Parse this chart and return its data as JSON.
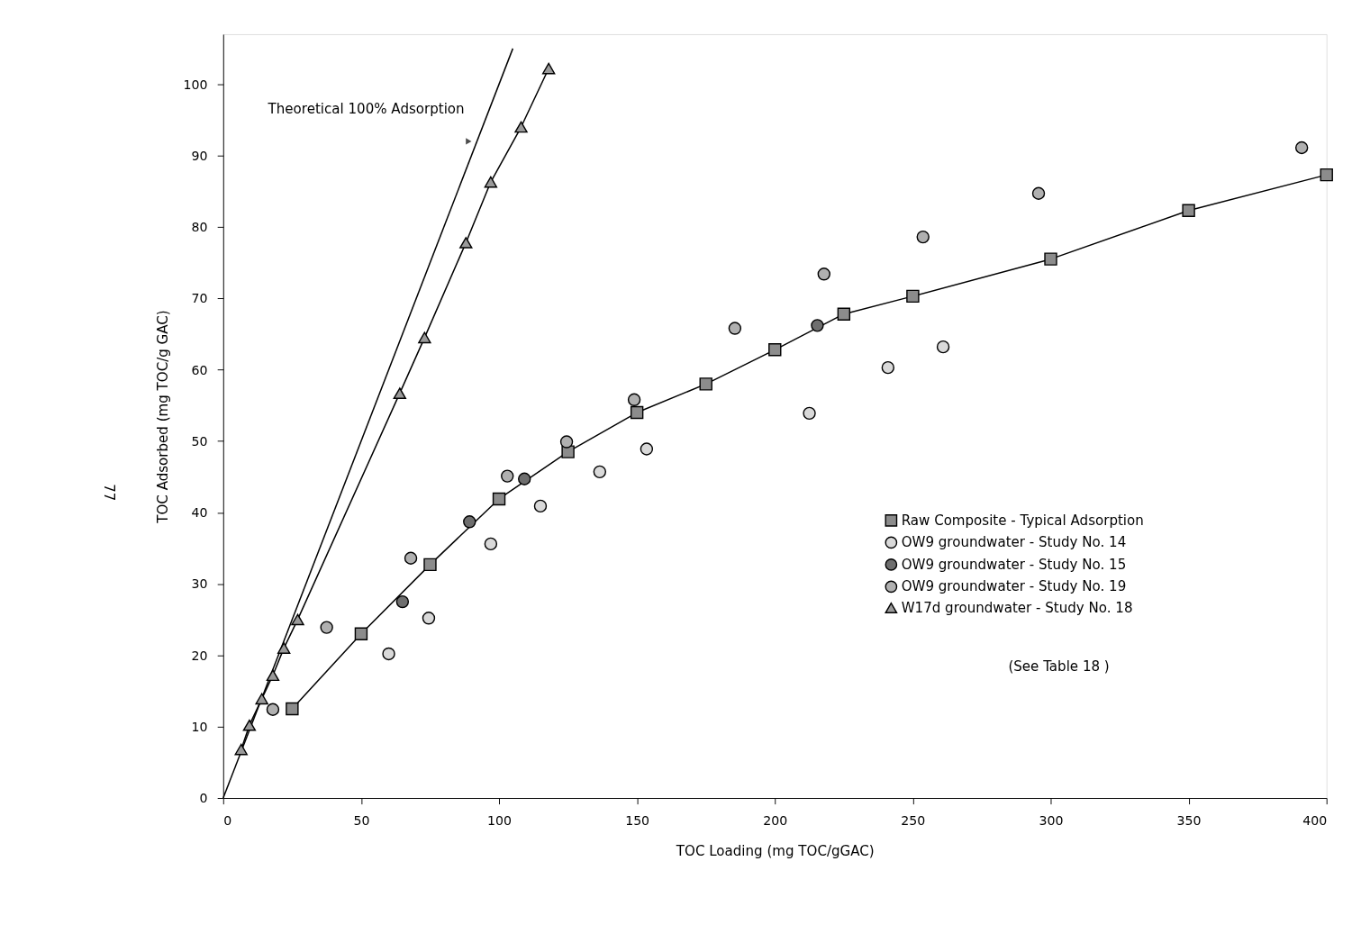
{
  "chart_data": {
    "type": "scatter",
    "xlabel": "TOC Loading (mg TOC/gGAC)",
    "ylabel": "TOC Adsorbed (mg TOC/g GAC)",
    "xlim": [
      0,
      400
    ],
    "ylim": [
      0,
      107
    ],
    "xticks": [
      0,
      50,
      100,
      150,
      200,
      250,
      300,
      350,
      400
    ],
    "yticks": [
      0,
      10,
      20,
      30,
      40,
      50,
      60,
      70,
      80,
      90,
      100
    ],
    "grid": false,
    "legend": "bottom right",
    "series": [
      {
        "type": "line",
        "marker": "none",
        "color": "#000000",
        "x": [
          0,
          105
        ],
        "values": [
          0,
          105
        ]
      },
      {
        "name": "Raw Composite - Typical Adsorption",
        "type": "line",
        "marker": "square",
        "color": "#8c8c8c",
        "x": [
          25,
          50,
          75,
          100,
          125,
          150,
          175,
          200,
          225,
          250,
          300,
          350,
          400
        ],
        "values": [
          12.5,
          23,
          32.7,
          41.9,
          48.5,
          54,
          58,
          62.8,
          67.8,
          70.3,
          75.5,
          82.3,
          87.3
        ]
      },
      {
        "name": "OW9 groundwater - Study No. 14",
        "marker": "circle",
        "color": "#d9d9d9",
        "x": [
          60,
          74.5,
          97,
          115,
          136.5,
          153.5,
          212.5,
          241,
          261
        ],
        "values": [
          20.2,
          25.2,
          35.6,
          40.9,
          45.7,
          48.9,
          53.9,
          60.3,
          63.2
        ]
      },
      {
        "name": "OW9 groundwater - Study No. 15",
        "marker": "circle",
        "color": "#6e6e6e",
        "x": [
          65,
          89.3,
          109.2,
          215.4
        ],
        "values": [
          27.5,
          38.7,
          44.7,
          66.2
        ]
      },
      {
        "name": "OW9 groundwater - Study No. 19",
        "marker": "circle",
        "color": "#b0b0b0",
        "x": [
          18,
          37.5,
          68,
          103,
          124.5,
          149,
          185.5,
          217.8,
          253.7,
          295.6,
          391
        ],
        "values": [
          12.4,
          23.9,
          33.6,
          45.1,
          49.9,
          55.8,
          65.8,
          73.4,
          78.6,
          84.7,
          91.1
        ]
      },
      {
        "name": "W17d groundwater - Study No. 18",
        "type": "line",
        "marker": "triangle",
        "color": "#9a9a9a",
        "x": [
          6.5,
          9.5,
          14,
          18,
          22,
          27,
          64,
          73,
          88,
          97,
          108,
          118
        ],
        "values": [
          6.8,
          10.2,
          13.9,
          17.2,
          21,
          25,
          56.7,
          64.5,
          77.8,
          86.3,
          94,
          102.2
        ]
      }
    ],
    "annotations": [
      {
        "text": "Theoretical 100% Adsorption",
        "x": 89,
        "y": 92
      },
      "(See Table 18 )",
      "77"
    ]
  }
}
